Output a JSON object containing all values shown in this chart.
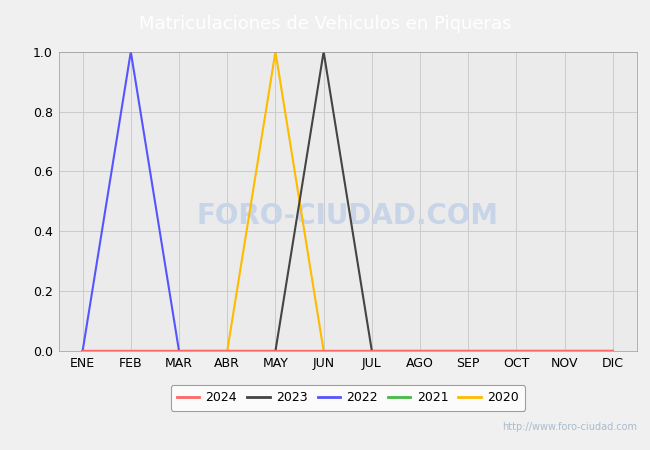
{
  "title": "Matriculaciones de Vehiculos en Piqueras",
  "title_bg_color": "#5080c8",
  "title_text_color": "white",
  "months": [
    "ENE",
    "FEB",
    "MAR",
    "ABR",
    "MAY",
    "JUN",
    "JUL",
    "AGO",
    "SEP",
    "OCT",
    "NOV",
    "DIC"
  ],
  "month_indices": [
    1,
    2,
    3,
    4,
    5,
    6,
    7,
    8,
    9,
    10,
    11,
    12
  ],
  "series": {
    "2024": {
      "color": "#ff6666",
      "data": [
        0,
        0,
        0,
        0,
        0,
        0,
        0,
        0,
        0,
        0,
        0,
        0
      ]
    },
    "2023": {
      "color": "#444444",
      "data": [
        0,
        0,
        0,
        0,
        0,
        1.0,
        0,
        0,
        0,
        0,
        0,
        0
      ]
    },
    "2022": {
      "color": "#5555ff",
      "data": [
        0,
        1.0,
        0,
        0,
        0,
        0,
        0,
        0,
        0,
        0,
        0,
        0
      ]
    },
    "2021": {
      "color": "#44bb44",
      "data": [
        0,
        0,
        0,
        0,
        0,
        0,
        0,
        0,
        0,
        0,
        0,
        0
      ]
    },
    "2020": {
      "color": "#ffbb00",
      "data": [
        0,
        0,
        0,
        0,
        1.0,
        0,
        0,
        0,
        0,
        0,
        0,
        0
      ]
    }
  },
  "legend_order": [
    "2024",
    "2023",
    "2022",
    "2021",
    "2020"
  ],
  "ylim": [
    0.0,
    1.0
  ],
  "yticks": [
    0.0,
    0.2,
    0.4,
    0.6,
    0.8,
    1.0
  ],
  "grid_color": "#cccccc",
  "plot_bg_color": "#ebebeb",
  "fig_bg_color": "#f0f0f0",
  "border_color": "#999999",
  "watermark_center_text": "FORO-CIUDAD.COM",
  "watermark_center_color": "#c8d4e8",
  "watermark_url": "http://www.foro-ciudad.com",
  "watermark_url_color": "#aabbcc",
  "linewidth": 1.5
}
